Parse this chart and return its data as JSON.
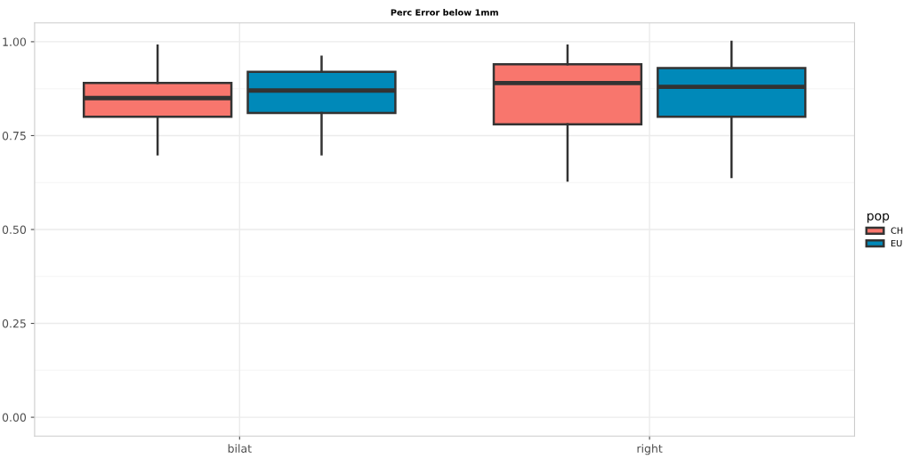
{
  "chart_data": {
    "type": "box",
    "title": "Perc Error below 1mm",
    "legend_title": "pop",
    "categories": [
      "bilat",
      "right"
    ],
    "series": [
      {
        "name": "CH",
        "color": "#f8766d",
        "boxes": [
          {
            "low": 0.7,
            "q1": 0.8,
            "median": 0.85,
            "q3": 0.89,
            "high": 0.99
          },
          {
            "low": 0.63,
            "q1": 0.78,
            "median": 0.89,
            "q3": 0.94,
            "high": 0.99
          }
        ]
      },
      {
        "name": "EU",
        "color": "#0089b9",
        "boxes": [
          {
            "low": 0.7,
            "q1": 0.81,
            "median": 0.87,
            "q3": 0.92,
            "high": 0.96
          },
          {
            "low": 0.64,
            "q1": 0.8,
            "median": 0.88,
            "q3": 0.93,
            "high": 1.0
          }
        ]
      }
    ],
    "ylim": [
      -0.05,
      1.05
    ],
    "yticks": [
      {
        "value": 0,
        "label": "0.00"
      },
      {
        "value": 0.25,
        "label": "0.25"
      },
      {
        "value": 0.5,
        "label": "0.50"
      },
      {
        "value": 0.75,
        "label": "0.75"
      },
      {
        "value": 1,
        "label": "1.00"
      }
    ],
    "grid": true,
    "legend": "right"
  }
}
